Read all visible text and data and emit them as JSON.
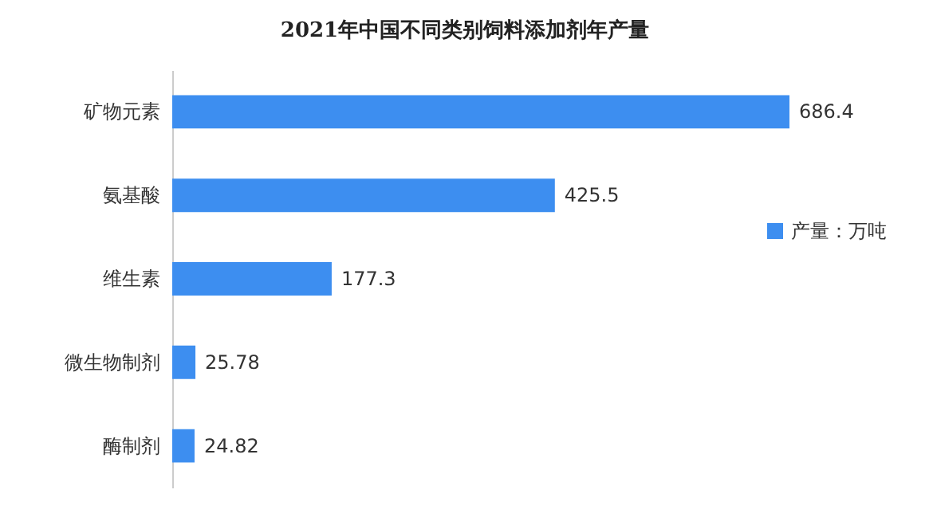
{
  "chart_data": {
    "type": "bar",
    "orientation": "horizontal",
    "title": "2021年中国不同类别饲料添加剂年产量",
    "categories": [
      "矿物元素",
      "氨基酸",
      "维生素",
      "微生物制剂",
      "酶制剂"
    ],
    "series": [
      {
        "name": "产量：万吨",
        "color": "#3d8ef0",
        "values": [
          686.4,
          425.5,
          177.3,
          25.78,
          24.82
        ]
      }
    ],
    "data_labels": true,
    "legend": "right"
  }
}
